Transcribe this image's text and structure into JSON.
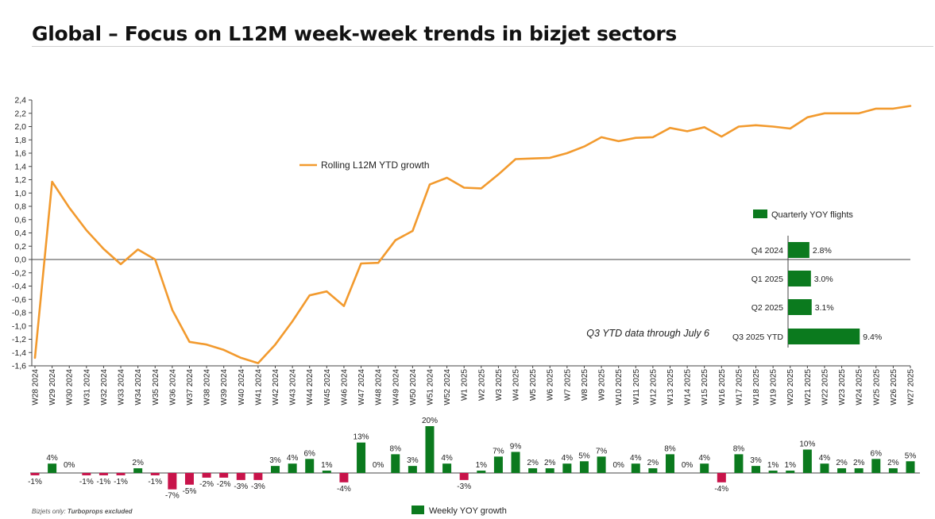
{
  "page": {
    "title": "Global – Focus on L12M week-week trends in bizjet sectors",
    "footnote_prefix": "Bizjets only: ",
    "footnote_bold": "Turboprops excluded"
  },
  "colors": {
    "line": "#f29a2e",
    "positive_bar": "#0b7a1e",
    "negative_bar": "#c8134a",
    "axis": "#444444"
  },
  "chart_data": [
    {
      "type": "line",
      "legend": "Rolling L12M YTD growth",
      "ylim": [
        -1.6,
        2.4
      ],
      "yticks": [
        "-1,6",
        "-1,4",
        "-1,2",
        "-1,0",
        "-0,8",
        "-0,6",
        "-0,4",
        "-0,2",
        "0,0",
        "0,2",
        "0,4",
        "0,6",
        "0,8",
        "1,0",
        "1,2",
        "1,4",
        "1,6",
        "1,8",
        "2,0",
        "2,2",
        "2,4"
      ],
      "categories": [
        "W28 2024",
        "W29 2024",
        "W30 2024",
        "W31 2024",
        "W32 2024",
        "W33 2024",
        "W34 2024",
        "W35 2024",
        "W36 2024",
        "W37 2024",
        "W38 2024",
        "W39 2024",
        "W40 2024",
        "W41 2024",
        "W42 2024",
        "W43 2024",
        "W44 2024",
        "W45 2024",
        "W46 2024",
        "W47 2024",
        "W48 2024",
        "W49 2024",
        "W50 2024",
        "W51 2024",
        "W52 2024",
        "W1 2025",
        "W2 2025",
        "W3 2025",
        "W4 2025",
        "W5 2025",
        "W6 2025",
        "W7 2025",
        "W8 2025",
        "W9 2025",
        "W10 2025",
        "W11 2025",
        "W12 2025",
        "W13 2025",
        "W14 2025",
        "W15 2025",
        "W16 2025",
        "W17 2025",
        "W18 2025",
        "W19 2025",
        "W20 2025",
        "W21 2025",
        "W22 2025",
        "W23 2025",
        "W24 2025",
        "W25 2025",
        "W26 2025",
        "W27 2025"
      ],
      "values": [
        -1.48,
        1.17,
        0.78,
        0.44,
        0.16,
        -0.07,
        0.15,
        0.0,
        -0.76,
        -1.24,
        -1.28,
        -1.36,
        -1.48,
        -1.56,
        -1.28,
        -0.93,
        -0.54,
        -0.48,
        -0.7,
        -0.06,
        -0.05,
        0.29,
        0.43,
        1.13,
        1.23,
        1.08,
        1.07,
        1.28,
        1.51,
        1.52,
        1.53,
        1.6,
        1.7,
        1.84,
        1.78,
        1.83,
        1.84,
        1.98,
        1.93,
        1.99,
        1.85,
        2.0,
        2.02,
        2.0,
        1.97,
        2.14,
        2.2,
        2.2,
        2.2,
        2.27,
        2.27,
        2.31
      ]
    },
    {
      "type": "bar",
      "legend": "Weekly YOY growth",
      "categories": [
        "W28 2024",
        "W29 2024",
        "W30 2024",
        "W31 2024",
        "W32 2024",
        "W33 2024",
        "W34 2024",
        "W35 2024",
        "W36 2024",
        "W37 2024",
        "W38 2024",
        "W39 2024",
        "W40 2024",
        "W41 2024",
        "W42 2024",
        "W43 2024",
        "W44 2024",
        "W45 2024",
        "W46 2024",
        "W47 2024",
        "W48 2024",
        "W49 2024",
        "W50 2024",
        "W51 2024",
        "W52 2024",
        "W1 2025",
        "W2 2025",
        "W3 2025",
        "W4 2025",
        "W5 2025",
        "W6 2025",
        "W7 2025",
        "W8 2025",
        "W9 2025",
        "W10 2025",
        "W11 2025",
        "W12 2025",
        "W13 2025",
        "W14 2025",
        "W15 2025",
        "W16 2025",
        "W17 2025",
        "W18 2025",
        "W19 2025",
        "W20 2025",
        "W21 2025",
        "W22 2025",
        "W23 2025",
        "W24 2025",
        "W25 2025",
        "W26 2025",
        "W27 2025"
      ],
      "values": [
        -1,
        4,
        0,
        -1,
        -1,
        -1,
        2,
        -1,
        -7,
        -5,
        -2,
        -2,
        -3,
        -3,
        3,
        4,
        6,
        1,
        -4,
        13,
        0,
        8,
        3,
        20,
        4,
        -3,
        1,
        7,
        9,
        2,
        2,
        4,
        5,
        7,
        0,
        4,
        2,
        8,
        0,
        4,
        -4,
        8,
        3,
        1,
        1,
        10,
        4,
        2,
        2,
        6,
        2,
        5
      ],
      "labels": [
        "-1%",
        "4%",
        "0%",
        "-1%",
        "-1%",
        "-1%",
        "2%",
        "-1%",
        "-7%",
        "-5%",
        "-2%",
        "-2%",
        "-3%",
        "-3%",
        "3%",
        "4%",
        "6%",
        "1%",
        "-4%",
        "13%",
        "0%",
        "8%",
        "3%",
        "20%",
        "4%",
        "-3%",
        "1%",
        "7%",
        "9%",
        "2%",
        "2%",
        "4%",
        "5%",
        "7%",
        "0%",
        "4%",
        "2%",
        "8%",
        "0%",
        "4%",
        "-4%",
        "8%",
        "3%",
        "1%",
        "1%",
        "10%",
        "4%",
        "2%",
        "2%",
        "6%",
        "2%",
        "5%"
      ]
    },
    {
      "type": "bar",
      "orientation": "horizontal",
      "legend": "Quarterly YOY flights",
      "annotation": "Q3 YTD data through July 6",
      "categories": [
        "Q4 2024",
        "Q1 2025",
        "Q2 2025",
        "Q3 2025 YTD"
      ],
      "values": [
        2.8,
        3.0,
        3.1,
        9.4
      ],
      "labels": [
        "2.8%",
        "3.0%",
        "3.1%",
        "9.4%"
      ]
    }
  ]
}
